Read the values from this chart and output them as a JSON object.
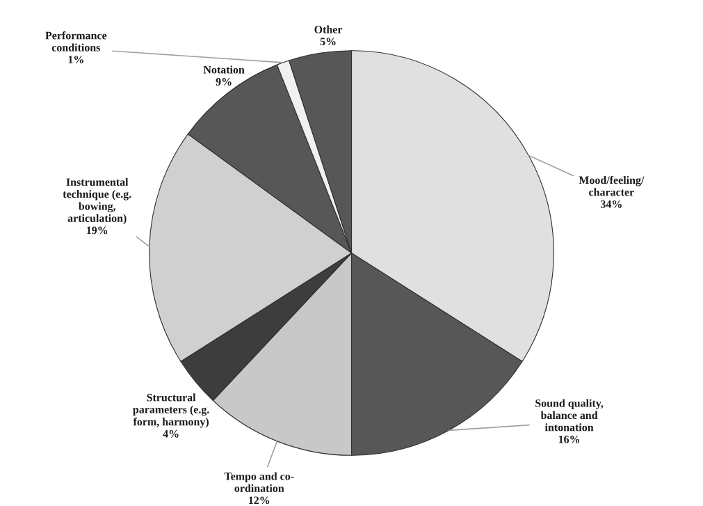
{
  "chart_data": {
    "type": "pie",
    "categories": [
      "Mood/feeling/\ncharacter",
      "Sound quality,\nbalance and\nintonation",
      "Tempo and co-\nordination",
      "Structural\nparameters (e.g.\nform, harmony)",
      "Instrumental\ntechnique (e.g.\nbowing,\narticulation)",
      "Notation",
      "Performance\nconditions",
      "Other"
    ],
    "values": [
      34,
      16,
      12,
      4,
      19,
      9,
      1,
      5
    ],
    "value_labels": [
      "34%",
      "16%",
      "12%",
      "4%",
      "19%",
      "9%",
      "1%",
      "5%"
    ],
    "colors": [
      "#e0e0e0",
      "#575757",
      "#c8c8c8",
      "#3d3d3d",
      "#d0d0d0",
      "#575757",
      "#f0f0f0",
      "#575757"
    ],
    "legend": false
  }
}
